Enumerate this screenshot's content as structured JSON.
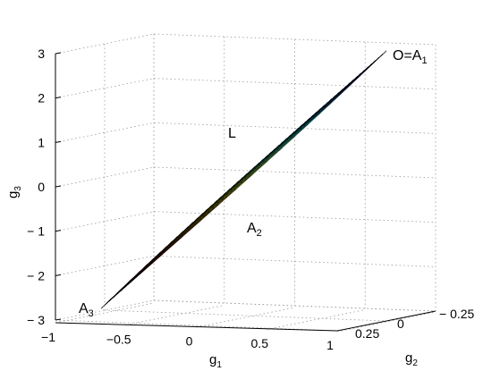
{
  "chart_data": {
    "type": "surface",
    "title": "",
    "axes": {
      "x": {
        "label": "g",
        "sub": "1",
        "ticks": [
          "-1",
          "-0.5",
          "0",
          "0.5",
          "1"
        ],
        "range": [
          -1,
          1
        ]
      },
      "y": {
        "label": "g",
        "sub": "2",
        "ticks": [
          "0.25",
          "0",
          "-0.25"
        ],
        "range": [
          -0.25,
          0.25
        ]
      },
      "z": {
        "label": "g",
        "sub": "3",
        "ticks": [
          "-3",
          "-2",
          "-1",
          "0",
          "1",
          "2",
          "3"
        ],
        "range": [
          -3,
          3
        ]
      }
    },
    "grid": true,
    "colormap": "jet",
    "annotations": [
      {
        "text": "O=A",
        "sub": "1"
      },
      {
        "text": "L",
        "sub": ""
      },
      {
        "text": "A",
        "sub": "2"
      },
      {
        "text": "A",
        "sub": "3"
      }
    ],
    "mesh": {
      "rows": 20,
      "cols": 24
    }
  }
}
